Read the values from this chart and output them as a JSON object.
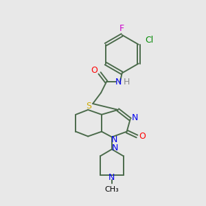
{
  "background_color": "#e8e8e8",
  "fig_size": [
    3.0,
    3.0
  ],
  "dpi": 100,
  "bond_color": "#4a6a4a",
  "colors": {
    "F": "#cc00cc",
    "Cl": "#008800",
    "O": "#ff0000",
    "N": "#0000ee",
    "S": "#ccaa00",
    "H": "#888888",
    "C": "#000000"
  }
}
